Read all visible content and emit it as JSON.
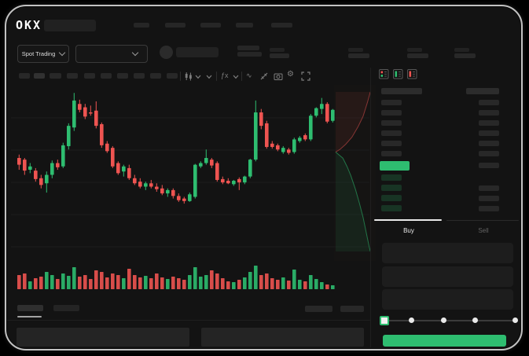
{
  "navbar": {
    "logo": "OKX"
  },
  "header": {
    "market_selector": {
      "label": "Spot Trading"
    }
  },
  "icons": {
    "fx": "ƒx",
    "wave": "∿",
    "gear": "⚙"
  },
  "orderbook": {
    "view_toggles": [
      "book-combined-icon",
      "book-bids-icon",
      "book-asks-icon"
    ]
  },
  "trade_panel": {
    "tabs": [
      {
        "label": "Buy"
      },
      {
        "label": "Sell"
      }
    ]
  },
  "colors": {
    "up": "#2ebd70",
    "down": "#ee5451",
    "price_highlight": "#2ebd70",
    "submit_button": "#2ebd70",
    "tab_indicator": "#e9e9e9"
  },
  "chart_data": {
    "type": "candlestick",
    "title": "",
    "n_candles": 58,
    "ylim": [
      25,
      100
    ],
    "grid": "faint-horizontal",
    "up_color": "#2ebd70",
    "down_color": "#ee5451",
    "ohlc": [
      [
        60,
        62,
        53,
        56
      ],
      [
        59,
        60,
        50,
        52.5
      ],
      [
        53,
        57,
        51,
        55
      ],
      [
        52.5,
        54,
        46,
        47.5
      ],
      [
        48,
        50,
        42,
        44
      ],
      [
        45,
        52,
        39.5,
        50
      ],
      [
        50,
        58.5,
        48,
        57
      ],
      [
        57,
        59,
        53,
        54.5
      ],
      [
        55,
        69,
        54,
        67.5
      ],
      [
        67,
        80.5,
        65,
        79
      ],
      [
        78,
        98.5,
        76,
        94
      ],
      [
        92,
        94.5,
        87,
        88.5
      ],
      [
        90,
        92,
        83,
        84.5
      ],
      [
        87,
        91,
        85,
        86.5
      ],
      [
        88,
        93.5,
        77.5,
        79
      ],
      [
        80,
        81,
        66,
        67.5
      ],
      [
        68.5,
        70,
        63,
        64
      ],
      [
        66,
        67,
        54,
        55
      ],
      [
        57,
        58,
        50,
        51
      ],
      [
        52,
        56,
        49,
        55
      ],
      [
        54,
        56,
        47,
        48
      ],
      [
        48,
        50,
        44,
        45
      ],
      [
        46,
        48,
        42,
        43
      ],
      [
        43,
        46,
        41,
        45
      ],
      [
        45,
        47,
        42,
        43
      ],
      [
        43,
        45,
        40,
        41.5
      ],
      [
        42,
        44,
        38,
        39
      ],
      [
        39,
        42,
        37,
        41
      ],
      [
        41,
        42,
        36,
        37.5
      ],
      [
        37.5,
        39,
        34,
        35
      ],
      [
        36,
        37,
        33,
        34.5
      ],
      [
        34.5,
        39.5,
        34,
        38.5
      ],
      [
        37,
        56.5,
        36,
        56
      ],
      [
        55,
        58,
        54,
        57
      ],
      [
        57,
        65,
        56,
        60
      ],
      [
        59,
        60,
        54,
        55.5
      ],
      [
        57,
        58,
        46,
        47
      ],
      [
        47.5,
        49,
        44.5,
        45.5
      ],
      [
        46.5,
        48,
        44.5,
        45
      ],
      [
        44.5,
        47,
        43.5,
        46.5
      ],
      [
        47.5,
        48.5,
        41,
        45.5
      ],
      [
        45.5,
        49.5,
        44.5,
        49
      ],
      [
        49,
        59.5,
        48,
        59
      ],
      [
        59,
        94,
        58,
        87
      ],
      [
        87,
        89,
        77,
        79
      ],
      [
        80.5,
        82,
        65.5,
        66.5
      ],
      [
        68.5,
        70,
        65.5,
        66.5
      ],
      [
        67.5,
        68.5,
        64,
        65
      ],
      [
        63.5,
        67,
        62.5,
        66
      ],
      [
        65,
        66,
        62,
        63
      ],
      [
        63.5,
        72,
        62.5,
        71
      ],
      [
        70,
        73,
        69,
        72
      ],
      [
        73.5,
        74.5,
        70,
        71
      ],
      [
        71,
        86,
        70,
        85
      ],
      [
        85,
        90,
        84,
        89.5
      ],
      [
        89,
        95.5,
        86,
        92
      ],
      [
        92,
        93,
        80.5,
        81.5
      ],
      [
        82,
        89,
        81,
        88.5
      ]
    ],
    "volume": [
      18,
      20,
      10,
      14,
      16,
      22,
      18,
      13,
      20,
      17,
      28,
      16,
      18,
      13,
      24,
      22,
      15,
      20,
      18,
      14,
      26,
      18,
      15,
      17,
      14,
      20,
      15,
      13,
      16,
      14,
      12,
      18,
      28,
      16,
      18,
      24,
      20,
      14,
      10,
      9,
      12,
      15,
      22,
      30,
      18,
      20,
      14,
      12,
      15,
      11,
      25,
      12,
      10,
      18,
      13,
      9,
      6,
      5
    ],
    "depth_profile": {
      "asks": [
        [
          0.04,
          0.96
        ],
        [
          0.1,
          0.88
        ],
        [
          0.18,
          0.76
        ],
        [
          0.24,
          0.62
        ],
        [
          0.3,
          0.45
        ],
        [
          0.34,
          0.28
        ],
        [
          0.37,
          0.12
        ],
        [
          0.385,
          0
        ]
      ],
      "bids": [
        [
          0.385,
          0
        ],
        [
          0.42,
          0.2
        ],
        [
          0.47,
          0.32
        ],
        [
          0.52,
          0.42
        ],
        [
          0.6,
          0.55
        ],
        [
          0.68,
          0.66
        ],
        [
          0.76,
          0.76
        ],
        [
          0.84,
          0.84
        ],
        [
          0.92,
          0.92
        ],
        [
          0.955,
          0.96
        ]
      ]
    }
  }
}
